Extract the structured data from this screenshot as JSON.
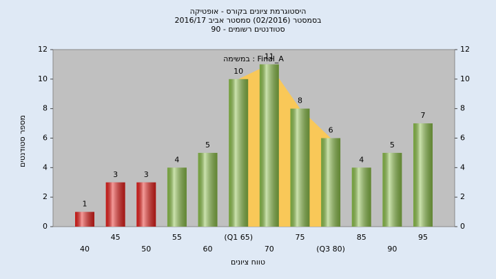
{
  "chart_data": {
    "type": "bar",
    "title": [
      "היסטוגרמת ציונים בקורס - אופטיקה",
      "בסמסטר  (02/2016)  סמסטר אביב 2016/17",
      "סטודנטים רשומים - 90"
    ],
    "annotation": "במשימה : Final_A",
    "x_label": "טווח ציונים",
    "y_label": "מספר סטודנטים",
    "categories": [
      "40",
      "45",
      "50",
      "55",
      "60",
      "(Q1 65)",
      "70",
      "75",
      "(Q3 80)",
      "85",
      "90",
      "95"
    ],
    "values": [
      1,
      3,
      3,
      4,
      5,
      10,
      11,
      8,
      6,
      4,
      5,
      7
    ],
    "colors": [
      "#e8201c",
      "#e8201c",
      "#e8201c",
      "#8cc04a",
      "#8cc04a",
      "#8cc04a",
      "#8cc04a",
      "#8cc04a",
      "#8cc04a",
      "#8cc04a",
      "#8cc04a",
      "#8cc04a"
    ],
    "quartile_area_color": "#ffc94d",
    "ylim": [
      0,
      12
    ],
    "yticks": [
      0,
      2,
      4,
      6,
      8,
      10,
      12
    ]
  }
}
